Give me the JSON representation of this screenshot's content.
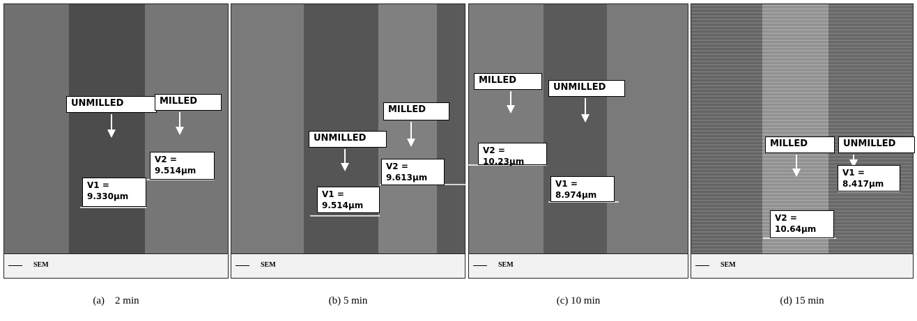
{
  "panels": [
    {
      "caption": "(a)    2 min",
      "footer": "SEM",
      "labels": [
        "UNMILLED",
        "MILLED"
      ],
      "measures": [
        {
          "name": "V1 =",
          "value": "9.330µm"
        },
        {
          "name": "V2 =",
          "value": "9.514µm"
        }
      ]
    },
    {
      "caption": "(b) 5 min",
      "footer": "SEM",
      "labels": [
        "UNMILLED",
        "MILLED"
      ],
      "measures": [
        {
          "name": "V1 =",
          "value": "9.514µm"
        },
        {
          "name": "V2 =",
          "value": "9.613µm"
        }
      ]
    },
    {
      "caption": "(c) 10 min",
      "footer": "SEM",
      "labels": [
        "MILLED",
        "UNMILLED"
      ],
      "measures": [
        {
          "name": "V2 =",
          "value": "10.23µm"
        },
        {
          "name": "V1 =",
          "value": "8.974µm"
        }
      ]
    },
    {
      "caption": "(d) 15 min",
      "footer": "SEM",
      "labels": [
        "MILLED",
        "UNMILLED"
      ],
      "measures": [
        {
          "name": "V1 =",
          "value": "8.417µm"
        },
        {
          "name": "V2 =",
          "value": "10.64µm"
        }
      ]
    }
  ]
}
